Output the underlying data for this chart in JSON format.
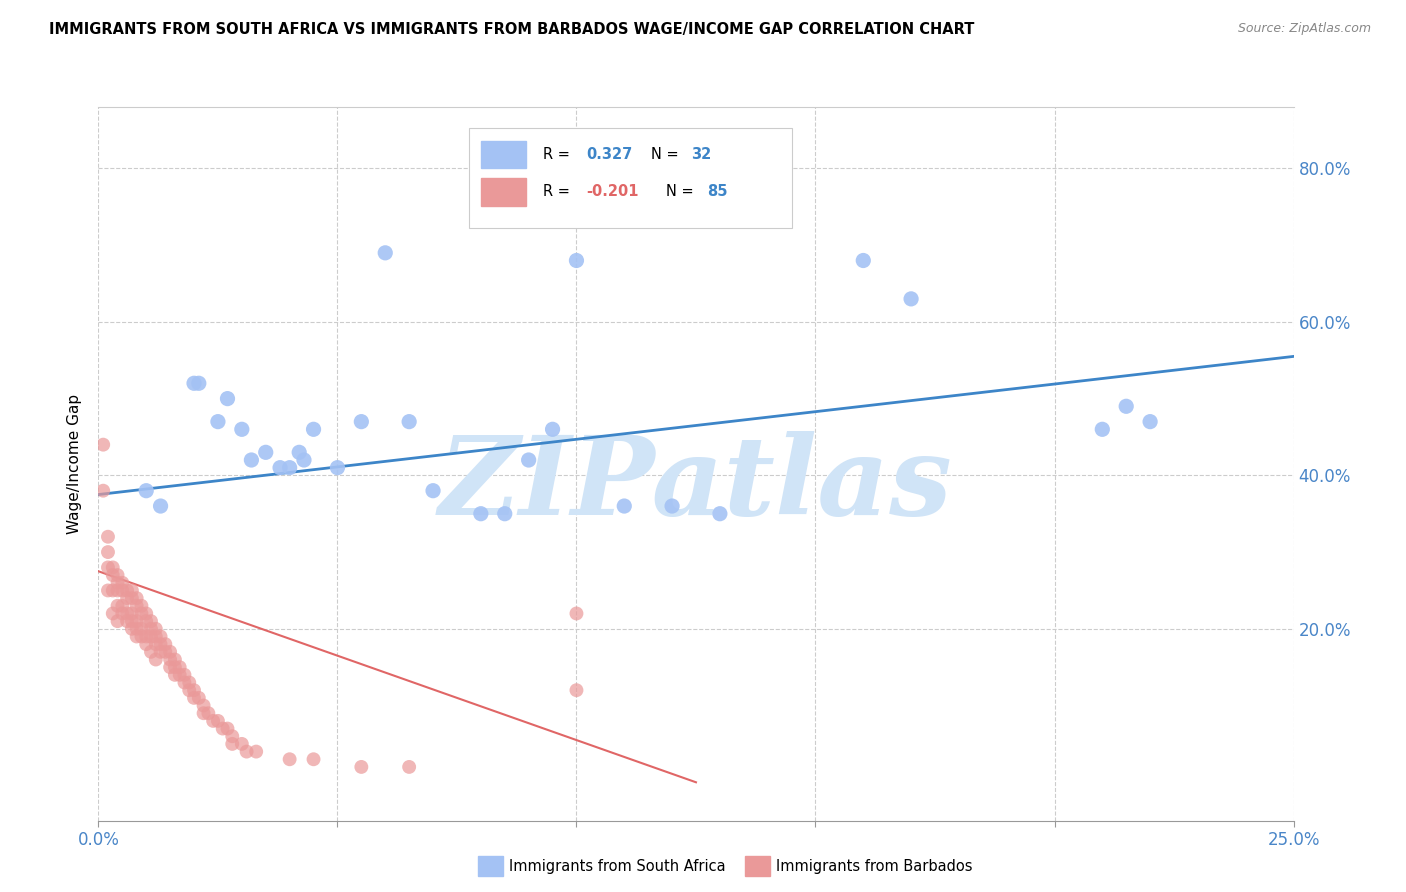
{
  "title": "IMMIGRANTS FROM SOUTH AFRICA VS IMMIGRANTS FROM BARBADOS WAGE/INCOME GAP CORRELATION CHART",
  "source": "Source: ZipAtlas.com",
  "ylabel": "Wage/Income Gap",
  "xlim": [
    0.0,
    0.25
  ],
  "ylim": [
    -0.05,
    0.88
  ],
  "xticks": [
    0.0,
    0.05,
    0.1,
    0.15,
    0.2,
    0.25
  ],
  "xticklabels": [
    "0.0%",
    "",
    "",
    "",
    "",
    "25.0%"
  ],
  "yticks": [
    0.2,
    0.4,
    0.6,
    0.8
  ],
  "yticklabels": [
    "20.0%",
    "40.0%",
    "60.0%",
    "80.0%"
  ],
  "blue_color": "#a4c2f4",
  "pink_color": "#ea9999",
  "blue_line_color": "#3d85c8",
  "pink_line_color": "#e06666",
  "watermark": "ZIPatlas",
  "watermark_color": "#d0e4f7",
  "background_color": "#ffffff",
  "grid_color": "#cccccc",
  "blue_dots_x": [
    0.01,
    0.013,
    0.02,
    0.021,
    0.025,
    0.027,
    0.03,
    0.032,
    0.035,
    0.038,
    0.04,
    0.042,
    0.043,
    0.045,
    0.05,
    0.055,
    0.06,
    0.065,
    0.07,
    0.08,
    0.085,
    0.09,
    0.095,
    0.1,
    0.11,
    0.12,
    0.13,
    0.16,
    0.17,
    0.21,
    0.215,
    0.22
  ],
  "blue_dots_y": [
    0.38,
    0.36,
    0.52,
    0.52,
    0.47,
    0.5,
    0.46,
    0.42,
    0.43,
    0.41,
    0.41,
    0.43,
    0.42,
    0.46,
    0.41,
    0.47,
    0.69,
    0.47,
    0.38,
    0.35,
    0.35,
    0.42,
    0.46,
    0.68,
    0.36,
    0.36,
    0.35,
    0.68,
    0.63,
    0.46,
    0.49,
    0.47
  ],
  "pink_dots_x": [
    0.001,
    0.001,
    0.002,
    0.002,
    0.002,
    0.002,
    0.003,
    0.003,
    0.003,
    0.003,
    0.004,
    0.004,
    0.004,
    0.004,
    0.004,
    0.005,
    0.005,
    0.005,
    0.005,
    0.006,
    0.006,
    0.006,
    0.006,
    0.007,
    0.007,
    0.007,
    0.007,
    0.007,
    0.008,
    0.008,
    0.008,
    0.008,
    0.008,
    0.009,
    0.009,
    0.009,
    0.009,
    0.01,
    0.01,
    0.01,
    0.01,
    0.011,
    0.011,
    0.011,
    0.011,
    0.012,
    0.012,
    0.012,
    0.012,
    0.013,
    0.013,
    0.013,
    0.014,
    0.014,
    0.015,
    0.015,
    0.015,
    0.016,
    0.016,
    0.016,
    0.017,
    0.017,
    0.018,
    0.018,
    0.019,
    0.019,
    0.02,
    0.02,
    0.021,
    0.022,
    0.022,
    0.023,
    0.024,
    0.025,
    0.026,
    0.027,
    0.028,
    0.028,
    0.03,
    0.031,
    0.033,
    0.04,
    0.045,
    0.055,
    0.065,
    0.1,
    0.1
  ],
  "pink_dots_y": [
    0.44,
    0.38,
    0.32,
    0.3,
    0.28,
    0.25,
    0.28,
    0.27,
    0.25,
    0.22,
    0.27,
    0.26,
    0.25,
    0.23,
    0.21,
    0.26,
    0.25,
    0.23,
    0.22,
    0.25,
    0.24,
    0.22,
    0.21,
    0.25,
    0.24,
    0.22,
    0.21,
    0.2,
    0.24,
    0.23,
    0.21,
    0.2,
    0.19,
    0.23,
    0.22,
    0.2,
    0.19,
    0.22,
    0.21,
    0.19,
    0.18,
    0.21,
    0.2,
    0.19,
    0.17,
    0.2,
    0.19,
    0.18,
    0.16,
    0.19,
    0.18,
    0.17,
    0.18,
    0.17,
    0.17,
    0.16,
    0.15,
    0.16,
    0.15,
    0.14,
    0.15,
    0.14,
    0.14,
    0.13,
    0.13,
    0.12,
    0.12,
    0.11,
    0.11,
    0.1,
    0.09,
    0.09,
    0.08,
    0.08,
    0.07,
    0.07,
    0.06,
    0.05,
    0.05,
    0.04,
    0.04,
    0.03,
    0.03,
    0.02,
    0.02,
    0.22,
    0.12
  ],
  "blue_trend_x": [
    0.0,
    0.25
  ],
  "blue_trend_y": [
    0.375,
    0.555
  ],
  "pink_trend_x": [
    0.0,
    0.125
  ],
  "pink_trend_y": [
    0.275,
    0.0
  ]
}
